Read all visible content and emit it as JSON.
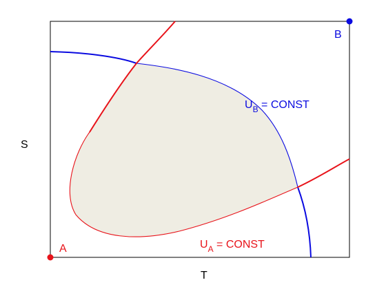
{
  "colors": {
    "red": "#e8131a",
    "blue": "#0a0ae0",
    "lens_fill": "#efede3",
    "frame": "#000000"
  },
  "axes": {
    "x_label": "T",
    "y_label": "S"
  },
  "points": {
    "a_label": "A",
    "b_label": "B"
  },
  "curves": {
    "ua": {
      "main": "U",
      "sub": "A",
      "rest": " = CONST"
    },
    "ub": {
      "main": "U",
      "sub": "B",
      "rest": " = CONST"
    }
  }
}
